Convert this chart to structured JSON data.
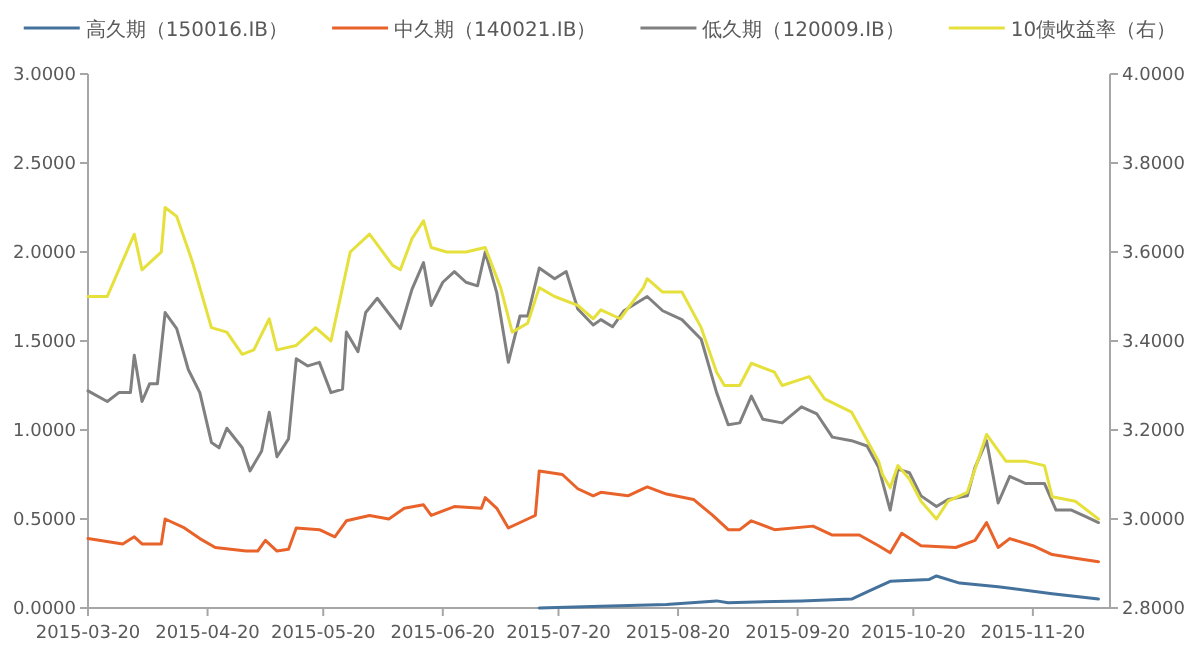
{
  "chart_data": {
    "type": "line",
    "legend": "top",
    "xlim": [
      "2015-03-20",
      "2015-12-10"
    ],
    "xticks": [
      "2015-03-20",
      "2015-04-20",
      "2015-05-20",
      "2015-06-20",
      "2015-07-20",
      "2015-08-20",
      "2015-09-20",
      "2015-10-20",
      "2015-11-20"
    ],
    "ylim": [
      0,
      3
    ],
    "yticks": [
      {
        "value": 0,
        "label": "0.0000"
      },
      {
        "value": 0.5,
        "label": "0.5000"
      },
      {
        "value": 1,
        "label": "1.0000"
      },
      {
        "value": 1.5,
        "label": "1.5000"
      },
      {
        "value": 2,
        "label": "2.0000"
      },
      {
        "value": 2.5,
        "label": "2.5000"
      },
      {
        "value": 3,
        "label": "3.0000"
      }
    ],
    "y2lim": [
      2.8,
      4
    ],
    "y2ticks": [
      {
        "value": 2.8,
        "label": "2.8000"
      },
      {
        "value": 3,
        "label": "3.0000"
      },
      {
        "value": 3.2,
        "label": "3.2000"
      },
      {
        "value": 3.4,
        "label": "3.4000"
      },
      {
        "value": 3.6,
        "label": "3.6000"
      },
      {
        "value": 3.8,
        "label": "3.8000"
      },
      {
        "value": 4,
        "label": "4.0000"
      }
    ],
    "series": [
      {
        "name": "高久期（150016.IB）",
        "color": "#44729c",
        "x": [
          "2015-07-15",
          "2015-07-31",
          "2015-08-17",
          "2015-08-30",
          "2015-09-02",
          "2015-09-21",
          "2015-10-04",
          "2015-10-09",
          "2015-10-14",
          "2015-10-24",
          "2015-10-26",
          "2015-11-01",
          "2015-11-11",
          "2015-11-25",
          "2015-12-07"
        ],
        "values": [
          0.0,
          0.01,
          0.02,
          0.04,
          0.03,
          0.04,
          0.05,
          0.1,
          0.15,
          0.16,
          0.18,
          0.14,
          0.12,
          0.08,
          0.05
        ]
      },
      {
        "name": "中久期（140021.IB）",
        "color": "#e8622a",
        "x": [
          "2015-03-20",
          "2015-03-29",
          "2015-04-01",
          "2015-04-03",
          "2015-04-08",
          "2015-04-09",
          "2015-04-14",
          "2015-04-18",
          "2015-04-22",
          "2015-04-26",
          "2015-04-30",
          "2015-05-03",
          "2015-05-05",
          "2015-05-08",
          "2015-05-11",
          "2015-05-13",
          "2015-05-19",
          "2015-05-23",
          "2015-05-26",
          "2015-06-01",
          "2015-06-06",
          "2015-06-10",
          "2015-06-15",
          "2015-06-17",
          "2015-06-23",
          "2015-06-30",
          "2015-07-01",
          "2015-07-04",
          "2015-07-07",
          "2015-07-12",
          "2015-07-14",
          "2015-07-15",
          "2015-07-21",
          "2015-07-25",
          "2015-07-29",
          "2015-07-31",
          "2015-08-07",
          "2015-08-12",
          "2015-08-17",
          "2015-08-24",
          "2015-08-29",
          "2015-09-02",
          "2015-09-05",
          "2015-09-08",
          "2015-09-14",
          "2015-09-24",
          "2015-09-29",
          "2015-10-06",
          "2015-10-11",
          "2015-10-14",
          "2015-10-17",
          "2015-10-22",
          "2015-10-31",
          "2015-11-05",
          "2015-11-08",
          "2015-11-11",
          "2015-11-14",
          "2015-11-20",
          "2015-11-25",
          "2015-12-01",
          "2015-12-07"
        ],
        "values": [
          0.39,
          0.36,
          0.4,
          0.36,
          0.36,
          0.5,
          0.45,
          0.39,
          0.34,
          0.33,
          0.32,
          0.32,
          0.38,
          0.32,
          0.33,
          0.45,
          0.44,
          0.4,
          0.49,
          0.52,
          0.5,
          0.56,
          0.58,
          0.52,
          0.57,
          0.56,
          0.62,
          0.56,
          0.45,
          0.5,
          0.52,
          0.77,
          0.75,
          0.67,
          0.63,
          0.65,
          0.63,
          0.68,
          0.64,
          0.61,
          0.52,
          0.44,
          0.44,
          0.49,
          0.44,
          0.46,
          0.41,
          0.41,
          0.35,
          0.31,
          0.42,
          0.35,
          0.34,
          0.38,
          0.48,
          0.34,
          0.39,
          0.35,
          0.3,
          0.28,
          0.26
        ]
      },
      {
        "name": "低久期（120009.IB）",
        "color": "#808080",
        "x": [
          "2015-03-20",
          "2015-03-25",
          "2015-03-28",
          "2015-03-31",
          "2015-04-01",
          "2015-04-03",
          "2015-04-05",
          "2015-04-07",
          "2015-04-09",
          "2015-04-12",
          "2015-04-15",
          "2015-04-18",
          "2015-04-21",
          "2015-04-23",
          "2015-04-25",
          "2015-04-29",
          "2015-05-01",
          "2015-05-04",
          "2015-05-06",
          "2015-05-08",
          "2015-05-11",
          "2015-05-13",
          "2015-05-16",
          "2015-05-19",
          "2015-05-22",
          "2015-05-25",
          "2015-05-26",
          "2015-05-29",
          "2015-05-31",
          "2015-06-03",
          "2015-06-09",
          "2015-06-12",
          "2015-06-15",
          "2015-06-17",
          "2015-06-20",
          "2015-06-23",
          "2015-06-26",
          "2015-06-29",
          "2015-07-01",
          "2015-07-04",
          "2015-07-07",
          "2015-07-10",
          "2015-07-12",
          "2015-07-15",
          "2015-07-19",
          "2015-07-22",
          "2015-07-25",
          "2015-07-29",
          "2015-07-31",
          "2015-08-03",
          "2015-08-06",
          "2015-08-12",
          "2015-08-16",
          "2015-08-21",
          "2015-08-26",
          "2015-08-30",
          "2015-09-02",
          "2015-09-05",
          "2015-09-08",
          "2015-09-11",
          "2015-09-16",
          "2015-09-21",
          "2015-09-25",
          "2015-09-29",
          "2015-10-04",
          "2015-10-08",
          "2015-10-11",
          "2015-10-14",
          "2015-10-16",
          "2015-10-19",
          "2015-10-22",
          "2015-10-26",
          "2015-10-29",
          "2015-11-03",
          "2015-11-05",
          "2015-11-08",
          "2015-11-11",
          "2015-11-14",
          "2015-11-18",
          "2015-11-23",
          "2015-11-26",
          "2015-11-30",
          "2015-12-04",
          "2015-12-07"
        ],
        "values": [
          1.22,
          1.16,
          1.21,
          1.21,
          1.42,
          1.16,
          1.26,
          1.26,
          1.66,
          1.57,
          1.34,
          1.21,
          0.93,
          0.9,
          1.01,
          0.9,
          0.77,
          0.88,
          1.1,
          0.85,
          0.95,
          1.4,
          1.36,
          1.38,
          1.21,
          1.23,
          1.55,
          1.44,
          1.66,
          1.74,
          1.57,
          1.79,
          1.94,
          1.7,
          1.83,
          1.89,
          1.83,
          1.81,
          2.0,
          1.77,
          1.38,
          1.64,
          1.64,
          1.91,
          1.85,
          1.89,
          1.68,
          1.59,
          1.62,
          1.58,
          1.67,
          1.75,
          1.67,
          1.62,
          1.51,
          1.21,
          1.03,
          1.04,
          1.19,
          1.06,
          1.04,
          1.13,
          1.09,
          0.96,
          0.94,
          0.91,
          0.79,
          0.55,
          0.78,
          0.76,
          0.63,
          0.57,
          0.61,
          0.63,
          0.79,
          0.94,
          0.59,
          0.74,
          0.7,
          0.7,
          0.55,
          0.55,
          0.51,
          0.48
        ]
      },
      {
        "name": "10债收益率（右）",
        "color": "#e6e03c",
        "axis": "y2",
        "x": [
          "2015-03-20",
          "2015-03-25",
          "2015-03-27",
          "2015-04-01",
          "2015-04-03",
          "2015-04-08",
          "2015-04-09",
          "2015-04-12",
          "2015-04-16",
          "2015-04-21",
          "2015-04-25",
          "2015-04-29",
          "2015-05-02",
          "2015-05-06",
          "2015-05-08",
          "2015-05-13",
          "2015-05-18",
          "2015-05-22",
          "2015-05-27",
          "2015-06-01",
          "2015-06-07",
          "2015-06-09",
          "2015-06-12",
          "2015-06-15",
          "2015-06-17",
          "2015-06-21",
          "2015-06-26",
          "2015-07-01",
          "2015-07-05",
          "2015-07-08",
          "2015-07-12",
          "2015-07-15",
          "2015-07-19",
          "2015-07-25",
          "2015-07-29",
          "2015-07-31",
          "2015-08-05",
          "2015-08-11",
          "2015-08-12",
          "2015-08-16",
          "2015-08-21",
          "2015-08-26",
          "2015-08-30",
          "2015-09-01",
          "2015-09-05",
          "2015-09-08",
          "2015-09-14",
          "2015-09-16",
          "2015-09-23",
          "2015-09-27",
          "2015-10-04",
          "2015-10-11",
          "2015-10-12",
          "2015-10-14",
          "2015-10-16",
          "2015-10-19",
          "2015-10-22",
          "2015-10-26",
          "2015-10-29",
          "2015-11-03",
          "2015-11-08",
          "2015-11-13",
          "2015-11-18",
          "2015-11-23",
          "2015-11-25",
          "2015-12-01",
          "2015-12-07"
        ],
        "values": [
          3.5,
          3.5,
          3.54,
          3.64,
          3.56,
          3.6,
          3.7,
          3.68,
          3.58,
          3.43,
          3.42,
          3.37,
          3.38,
          3.45,
          3.38,
          3.39,
          3.43,
          3.4,
          3.6,
          3.64,
          3.57,
          3.56,
          3.63,
          3.67,
          3.61,
          3.6,
          3.6,
          3.61,
          3.52,
          3.42,
          3.44,
          3.52,
          3.5,
          3.48,
          3.45,
          3.47,
          3.45,
          3.52,
          3.54,
          3.51,
          3.51,
          3.43,
          3.33,
          3.3,
          3.3,
          3.35,
          3.33,
          3.3,
          3.32,
          3.27,
          3.24,
          3.13,
          3.1,
          3.07,
          3.12,
          3.09,
          3.04,
          3.0,
          3.04,
          3.06,
          3.19,
          3.13,
          3.13,
          3.12,
          3.05,
          3.04,
          3.0
        ]
      }
    ]
  }
}
